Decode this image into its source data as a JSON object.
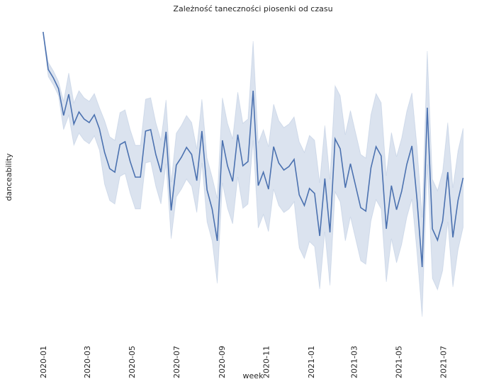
{
  "chart_data": {
    "type": "line",
    "title": "Zależność taneczności piosenki od czasu",
    "xlabel": "week",
    "ylabel": "danceability",
    "color": "#4c72b0",
    "x": [
      0,
      1,
      2,
      3,
      4,
      5,
      6,
      7,
      8,
      9,
      10,
      11,
      12,
      13,
      14,
      15,
      16,
      17,
      18,
      19,
      20,
      21,
      22,
      23,
      24,
      25,
      26,
      27,
      28,
      29,
      30,
      31,
      32,
      33,
      34,
      35,
      36,
      37,
      38,
      39,
      40,
      41,
      42,
      43,
      44,
      45,
      46,
      47,
      48,
      49,
      50,
      51,
      52,
      53,
      54,
      55,
      56,
      57,
      58,
      59,
      60,
      61,
      62,
      63,
      64,
      65,
      66,
      67,
      68,
      69,
      70,
      71,
      72,
      73,
      74,
      75,
      76,
      77,
      78,
      79,
      80,
      81,
      82
    ],
    "values": [
      0.875,
      0.822,
      0.81,
      0.795,
      0.757,
      0.787,
      0.745,
      0.762,
      0.752,
      0.747,
      0.758,
      0.738,
      0.705,
      0.682,
      0.677,
      0.716,
      0.72,
      0.692,
      0.67,
      0.67,
      0.735,
      0.737,
      0.702,
      0.677,
      0.734,
      0.623,
      0.687,
      0.698,
      0.712,
      0.702,
      0.665,
      0.735,
      0.652,
      0.625,
      0.58,
      0.722,
      0.686,
      0.664,
      0.73,
      0.686,
      0.692,
      0.792,
      0.658,
      0.677,
      0.653,
      0.713,
      0.69,
      0.68,
      0.685,
      0.695,
      0.645,
      0.63,
      0.654,
      0.647,
      0.587,
      0.668,
      0.592,
      0.724,
      0.71,
      0.655,
      0.689,
      0.658,
      0.627,
      0.622,
      0.683,
      0.713,
      0.7,
      0.597,
      0.658,
      0.624,
      0.65,
      0.688,
      0.714,
      0.638,
      0.543,
      0.768,
      0.597,
      0.581,
      0.608,
      0.677,
      0.585,
      0.637,
      0.669
    ],
    "upper": [
      0.875,
      0.832,
      0.82,
      0.805,
      0.777,
      0.817,
      0.775,
      0.792,
      0.782,
      0.777,
      0.788,
      0.768,
      0.75,
      0.727,
      0.722,
      0.761,
      0.765,
      0.737,
      0.715,
      0.715,
      0.78,
      0.782,
      0.747,
      0.722,
      0.779,
      0.663,
      0.732,
      0.743,
      0.757,
      0.747,
      0.71,
      0.78,
      0.697,
      0.67,
      0.64,
      0.782,
      0.746,
      0.724,
      0.79,
      0.746,
      0.752,
      0.862,
      0.718,
      0.737,
      0.713,
      0.773,
      0.75,
      0.74,
      0.745,
      0.755,
      0.72,
      0.705,
      0.729,
      0.722,
      0.662,
      0.743,
      0.667,
      0.799,
      0.785,
      0.73,
      0.764,
      0.733,
      0.702,
      0.697,
      0.758,
      0.788,
      0.775,
      0.672,
      0.733,
      0.699,
      0.725,
      0.763,
      0.789,
      0.713,
      0.613,
      0.848,
      0.667,
      0.651,
      0.678,
      0.747,
      0.655,
      0.707,
      0.739
    ],
    "lower": [
      0.875,
      0.812,
      0.8,
      0.785,
      0.737,
      0.757,
      0.715,
      0.732,
      0.722,
      0.717,
      0.728,
      0.708,
      0.66,
      0.637,
      0.632,
      0.671,
      0.675,
      0.647,
      0.625,
      0.625,
      0.69,
      0.692,
      0.657,
      0.632,
      0.689,
      0.583,
      0.642,
      0.653,
      0.667,
      0.657,
      0.62,
      0.69,
      0.607,
      0.58,
      0.52,
      0.662,
      0.626,
      0.604,
      0.67,
      0.626,
      0.632,
      0.722,
      0.598,
      0.617,
      0.593,
      0.653,
      0.63,
      0.62,
      0.625,
      0.635,
      0.57,
      0.555,
      0.579,
      0.572,
      0.512,
      0.593,
      0.517,
      0.649,
      0.635,
      0.58,
      0.614,
      0.583,
      0.552,
      0.547,
      0.608,
      0.638,
      0.625,
      0.522,
      0.583,
      0.549,
      0.575,
      0.613,
      0.639,
      0.563,
      0.473,
      0.688,
      0.527,
      0.511,
      0.538,
      0.607,
      0.515,
      0.567,
      0.599
    ],
    "xlim": [
      -1.5,
      82.9
    ],
    "ylim": [
      0.44,
      0.9
    ],
    "xticks": [
      {
        "value": 0,
        "label": "2020-01"
      },
      {
        "value": 8.57,
        "label": "2020-03"
      },
      {
        "value": 17.29,
        "label": "2020-05"
      },
      {
        "value": 26,
        "label": "2020-07"
      },
      {
        "value": 34.86,
        "label": "2020-09"
      },
      {
        "value": 43.57,
        "label": "2020-11"
      },
      {
        "value": 52.29,
        "label": "2021-01"
      },
      {
        "value": 60.71,
        "label": "2021-03"
      },
      {
        "value": 69.43,
        "label": "2021-05"
      },
      {
        "value": 78.14,
        "label": "2021-07"
      }
    ]
  }
}
